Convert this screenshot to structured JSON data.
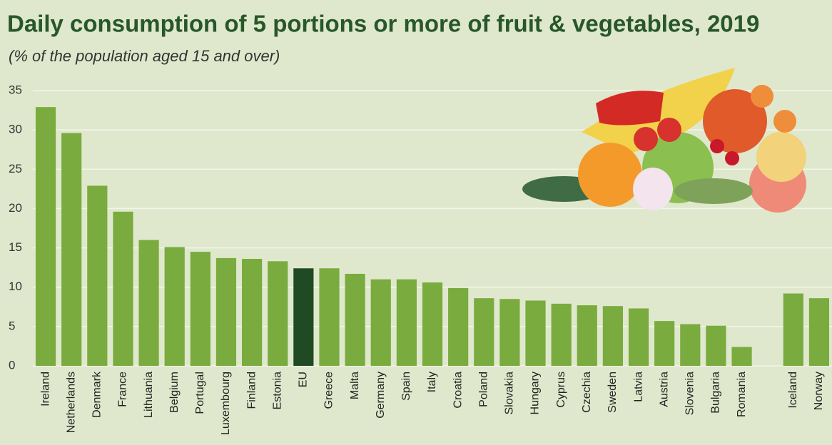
{
  "chart_data": {
    "type": "bar",
    "title": "Daily consumption of 5 portions or more of fruit & vegetables, 2019",
    "subtitle": "(% of  the population aged 15 and over)",
    "categories": [
      "Ireland",
      "Netherlands",
      "Denmark",
      "France",
      "Lithuania",
      "Belgium",
      "Portugal",
      "Luxembourg",
      "Finland",
      "Estonia",
      "EU",
      "Greece",
      "Malta",
      "Germany",
      "Spain",
      "Italy",
      "Croatia",
      "Poland",
      "Slovakia",
      "Hungary",
      "Cyprus",
      "Czechia",
      "Sweden",
      "Latvia",
      "Austria",
      "Slovenia",
      "Bulgaria",
      "Romania",
      null,
      "Iceland",
      "Norway"
    ],
    "values": [
      32.9,
      29.6,
      22.9,
      19.6,
      16.0,
      15.1,
      14.5,
      13.7,
      13.6,
      13.3,
      12.4,
      12.4,
      11.7,
      11.0,
      11.0,
      10.6,
      9.9,
      8.6,
      8.5,
      8.3,
      7.9,
      7.7,
      7.6,
      7.3,
      5.7,
      5.3,
      5.1,
      2.4,
      null,
      9.2,
      8.6
    ],
    "colors": [
      "#7aab3e",
      "#7aab3e",
      "#7aab3e",
      "#7aab3e",
      "#7aab3e",
      "#7aab3e",
      "#7aab3e",
      "#7aab3e",
      "#7aab3e",
      "#7aab3e",
      "#1f4a23",
      "#7aab3e",
      "#7aab3e",
      "#7aab3e",
      "#7aab3e",
      "#7aab3e",
      "#7aab3e",
      "#7aab3e",
      "#7aab3e",
      "#7aab3e",
      "#7aab3e",
      "#7aab3e",
      "#7aab3e",
      "#7aab3e",
      "#7aab3e",
      "#7aab3e",
      "#7aab3e",
      "#7aab3e",
      "#7aab3e",
      "#7aab3e",
      "#7aab3e"
    ],
    "ylim": [
      0,
      35
    ],
    "yticks": [
      0,
      5,
      10,
      15,
      20,
      25,
      30,
      35
    ],
    "grid": true
  }
}
